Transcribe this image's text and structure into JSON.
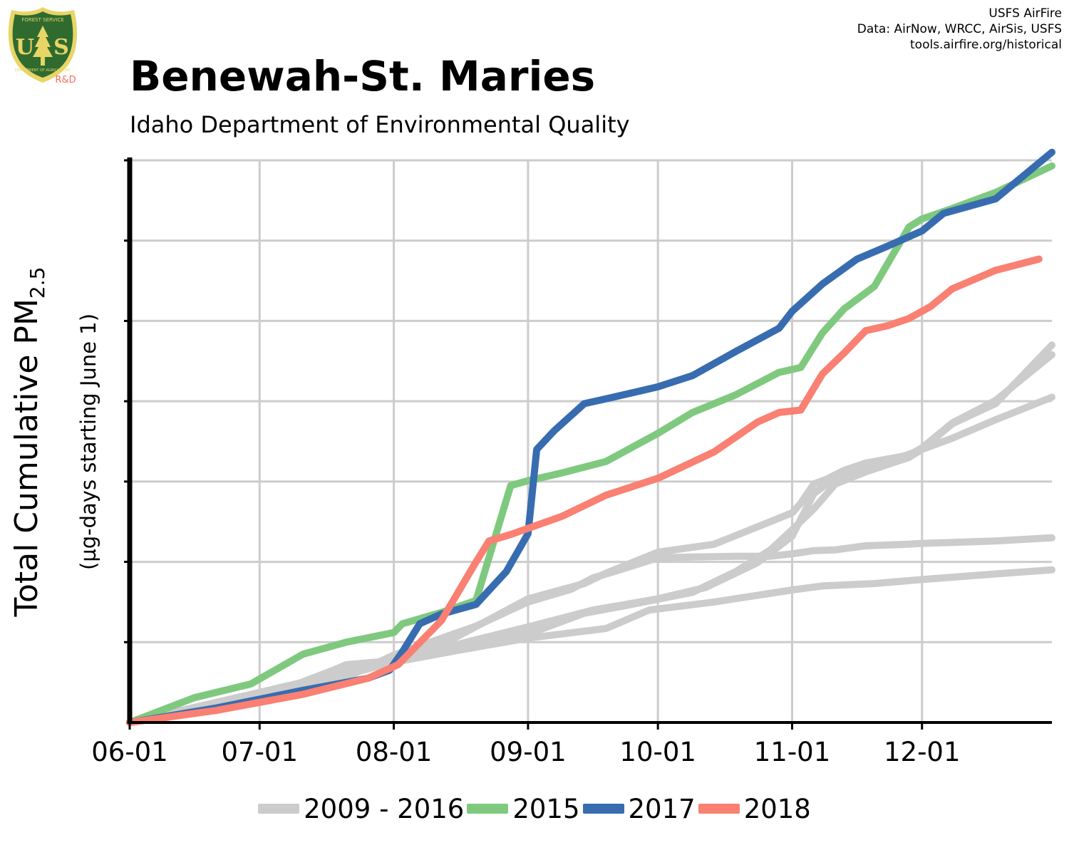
{
  "logo": {
    "top_text": "FOREST SERVICE",
    "letters_left": "U",
    "letters_right": "S",
    "bottom_text": "DEPARTMENT OF AGRICULTURE",
    "badge": "R&D",
    "shield_color": "#2f6b2f",
    "rim_color": "#e8d566",
    "badge_color": "#f56d58"
  },
  "credits": {
    "line1": "USFS AirFire",
    "line2": "Data: AirNow, WRCC, AirSis, USFS",
    "line3": "tools.airfire.org/historical"
  },
  "chart_data": {
    "type": "line",
    "title": "Benewah-St. Maries",
    "subtitle": "Idaho Department of Environmental Quality",
    "ylabel_main": "Total Cumulative PM",
    "ylabel_sub": "2.5",
    "ylabel2": "(µg-days starting June 1)",
    "x_ticks": [
      "06-01",
      "07-01",
      "08-01",
      "09-01",
      "10-01",
      "11-01",
      "12-01"
    ],
    "x_tick_days": [
      0,
      30,
      61,
      92,
      122,
      153,
      183
    ],
    "xlim": [
      0,
      213
    ],
    "ylim": [
      0,
      7.0
    ],
    "y_gridlines": [
      1,
      2,
      3,
      4,
      5,
      6,
      7
    ],
    "grid": true,
    "legend_position": "bottom",
    "series": [
      {
        "name": "2009 - 2016",
        "color": "#cccccc",
        "x": [
          0,
          30,
          50,
          61,
          80,
          92,
          102,
          107,
          112,
          122,
          130,
          140,
          148,
          153,
          158,
          163,
          170,
          180,
          183,
          189,
          200,
          213
        ],
        "y": [
          0,
          0.3,
          0.56,
          0.84,
          1.2,
          1.5,
          1.66,
          1.8,
          1.88,
          2.05,
          2.06,
          2.07,
          2.07,
          2.1,
          2.14,
          2.15,
          2.2,
          2.22,
          2.23,
          2.24,
          2.26,
          2.3
        ]
      },
      {
        "name": "2009 - 2016",
        "color": "#cccccc",
        "x": [
          0,
          30,
          50,
          61,
          75,
          92,
          110,
          120,
          135,
          153,
          160,
          172,
          183,
          200,
          213
        ],
        "y": [
          0,
          0.3,
          0.6,
          0.75,
          0.89,
          1.05,
          1.17,
          1.4,
          1.5,
          1.65,
          1.7,
          1.73,
          1.78,
          1.85,
          1.9
        ]
      },
      {
        "name": "2009 - 2016",
        "color": "#cccccc",
        "x": [
          0,
          30,
          47,
          50,
          61,
          80,
          92,
          107,
          122,
          133,
          145,
          153,
          158,
          163,
          168,
          178,
          183,
          190,
          200,
          213
        ],
        "y": [
          0,
          0.3,
          0.65,
          0.72,
          0.77,
          1.03,
          1.19,
          1.4,
          1.54,
          1.68,
          1.99,
          2.32,
          2.85,
          3.05,
          3.16,
          3.3,
          3.4,
          3.72,
          3.97,
          4.7
        ]
      },
      {
        "name": "2009 - 2016",
        "color": "#cccccc",
        "x": [
          0,
          30,
          50,
          61,
          75,
          92,
          105,
          115,
          130,
          140,
          148,
          153,
          158,
          163,
          170,
          180,
          183,
          190,
          200,
          213
        ],
        "y": [
          0,
          0.3,
          0.6,
          0.75,
          0.94,
          1.1,
          1.36,
          1.46,
          1.62,
          1.88,
          2.15,
          2.4,
          2.66,
          2.97,
          3.12,
          3.3,
          3.4,
          3.54,
          3.77,
          4.05
        ]
      },
      {
        "name": "2009 - 2016",
        "color": "#cccccc",
        "x": [
          0,
          20,
          40,
          61,
          75,
          92,
          105,
          110,
          122,
          135,
          153,
          155,
          158,
          161,
          165,
          170,
          180,
          183,
          190,
          200,
          213
        ],
        "y": [
          0,
          0.25,
          0.5,
          0.79,
          1.05,
          1.54,
          1.73,
          1.86,
          2.12,
          2.22,
          2.61,
          2.73,
          2.97,
          3.03,
          3.14,
          3.23,
          3.33,
          3.42,
          3.73,
          4.01,
          4.58
        ]
      },
      {
        "name": "2015",
        "color": "#7fc97f",
        "x": [
          0,
          15,
          28,
          40,
          50,
          61,
          63,
          72,
          80,
          88,
          92,
          100,
          110,
          122,
          130,
          140,
          150,
          155,
          160,
          165,
          172,
          180,
          183,
          190,
          200,
          213
        ],
        "y": [
          0,
          0.31,
          0.48,
          0.85,
          1.0,
          1.12,
          1.23,
          1.37,
          1.52,
          2.95,
          3.01,
          3.11,
          3.25,
          3.6,
          3.86,
          4.08,
          4.36,
          4.42,
          4.85,
          5.15,
          5.43,
          6.17,
          6.27,
          6.4,
          6.6,
          6.93
        ]
      },
      {
        "name": "2017",
        "color": "#386cb0",
        "x": [
          0,
          20,
          40,
          55,
          60,
          63,
          67,
          72,
          80,
          87,
          92,
          94,
          98,
          105,
          110,
          122,
          130,
          140,
          150,
          153,
          160,
          168,
          175,
          183,
          188,
          200,
          213
        ],
        "y": [
          0,
          0.18,
          0.4,
          0.55,
          0.65,
          0.88,
          1.23,
          1.35,
          1.47,
          1.88,
          2.35,
          3.4,
          3.63,
          3.97,
          4.03,
          4.18,
          4.32,
          4.62,
          4.91,
          5.12,
          5.46,
          5.77,
          5.93,
          6.12,
          6.34,
          6.52,
          7.1
        ]
      },
      {
        "name": "2018",
        "color": "#f98072",
        "x": [
          0,
          20,
          40,
          55,
          62,
          72,
          80,
          83,
          88,
          100,
          110,
          122,
          135,
          145,
          150,
          155,
          160,
          165,
          170,
          175,
          180,
          185,
          190,
          200,
          210
        ],
        "y": [
          0,
          0.15,
          0.35,
          0.55,
          0.72,
          1.27,
          2.0,
          2.26,
          2.34,
          2.57,
          2.83,
          3.04,
          3.37,
          3.74,
          3.86,
          3.89,
          4.34,
          4.6,
          4.88,
          4.94,
          5.03,
          5.18,
          5.4,
          5.63,
          5.77
        ]
      }
    ],
    "legend": [
      {
        "label": "2009 - 2016",
        "color": "#cccccc"
      },
      {
        "label": "2015",
        "color": "#7fc97f"
      },
      {
        "label": "2017",
        "color": "#386cb0"
      },
      {
        "label": "2018",
        "color": "#f98072"
      }
    ]
  }
}
